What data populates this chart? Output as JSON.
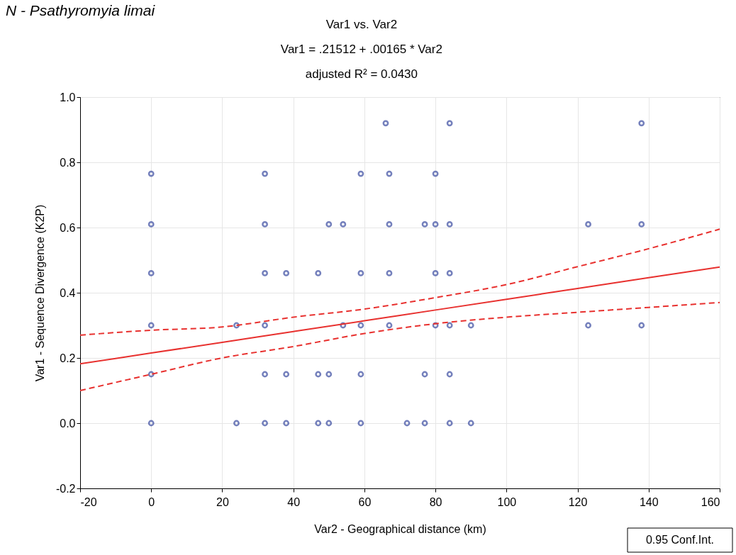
{
  "chart_data": {
    "type": "scatter",
    "title": "N - Psathyromyia limai",
    "annotations": [
      "Var1 vs. Var2",
      "Var1  = .21512 + .00165 * Var2",
      "adjusted R² = 0.0430",
      "0.95 Conf.Int."
    ],
    "xlabel": "Var2 - Geographical distance (km)",
    "ylabel": "Var1 - Sequence Divergence (K2P)",
    "xlim": [
      -20,
      160
    ],
    "xticks": [
      -20,
      0,
      20,
      40,
      60,
      80,
      100,
      120,
      140,
      160
    ],
    "ylim": [
      -0.2,
      1.0
    ],
    "yticks": [
      -0.2,
      {
        "value": 0,
        "label": "0.0"
      },
      0.2,
      0.4,
      0.6,
      0.8,
      {
        "value": 1,
        "label": "1.0"
      }
    ],
    "grid": true,
    "series": [
      {
        "color": "#3a4ba0",
        "marker": "circle",
        "x": [
          66,
          84,
          138,
          0,
          32,
          59,
          67,
          80,
          0,
          32,
          50,
          54,
          67,
          77,
          80,
          84,
          123,
          138,
          0,
          32,
          38,
          47,
          59,
          67,
          80,
          84,
          0,
          24,
          32,
          54,
          59,
          67,
          80,
          84,
          90,
          123,
          138,
          0,
          32,
          38,
          47,
          50,
          59,
          77,
          84,
          0,
          24,
          32,
          38,
          47,
          50,
          59,
          72,
          77,
          84,
          90
        ],
        "values": [
          0.92,
          0.92,
          0.92,
          0.765,
          0.765,
          0.765,
          0.765,
          0.765,
          0.61,
          0.61,
          0.61,
          0.61,
          0.61,
          0.61,
          0.61,
          0.61,
          0.61,
          0.61,
          0.46,
          0.46,
          0.46,
          0.46,
          0.46,
          0.46,
          0.46,
          0.46,
          0.3,
          0.3,
          0.3,
          0.3,
          0.3,
          0.3,
          0.3,
          0.3,
          0.3,
          0.3,
          0.3,
          0.15,
          0.15,
          0.15,
          0.15,
          0.15,
          0.15,
          0.15,
          0.15,
          0.0,
          0.0,
          0.0,
          0.0,
          0.0,
          0.0,
          0.0,
          0.0,
          0.0,
          0.0,
          0.0
        ]
      },
      {
        "type": "line",
        "color": "#e8312f",
        "line_style": "solid",
        "marker": "none",
        "x": [
          -20,
          0,
          20,
          40,
          60,
          80,
          100,
          120,
          140,
          160
        ],
        "values": [
          0.182,
          0.215,
          0.248,
          0.281,
          0.314,
          0.347,
          0.38,
          0.413,
          0.446,
          0.479
        ]
      },
      {
        "type": "line",
        "color": "#e8312f",
        "line_style": "dashed",
        "marker": "none",
        "x": [
          -20,
          0,
          20,
          40,
          60,
          80,
          100,
          120,
          140,
          160
        ],
        "values": [
          0.27,
          0.285,
          0.295,
          0.325,
          0.35,
          0.385,
          0.425,
          0.48,
          0.535,
          0.595
        ]
      },
      {
        "type": "line",
        "color": "#e8312f",
        "line_style": "dashed",
        "marker": "none",
        "x": [
          -20,
          0,
          20,
          40,
          60,
          80,
          100,
          120,
          140,
          160
        ],
        "values": [
          0.1,
          0.15,
          0.2,
          0.235,
          0.275,
          0.305,
          0.325,
          0.34,
          0.355,
          0.37
        ]
      }
    ]
  }
}
